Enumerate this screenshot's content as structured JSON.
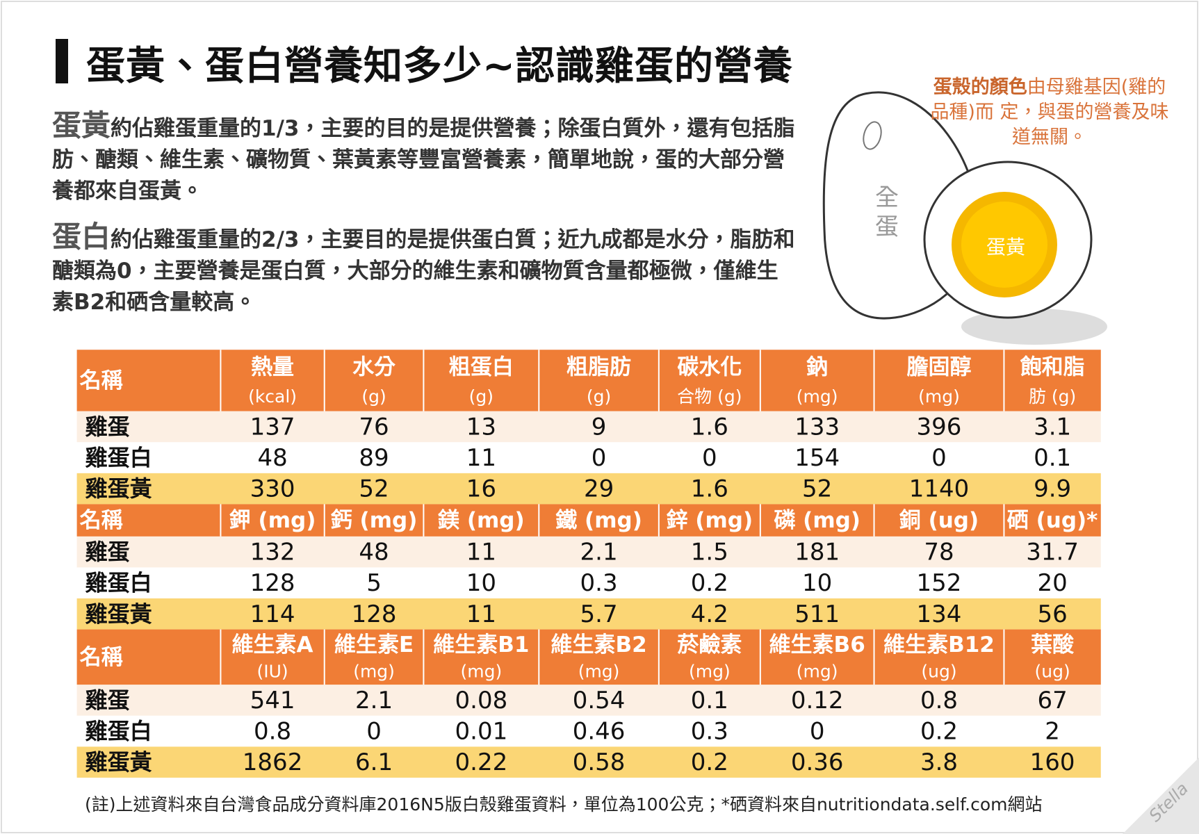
{
  "title": "蛋黃、蛋白營養知多少~認識雞蛋的營養",
  "paragraphs": [
    {
      "lead": "蛋黃",
      "text": "約佔雞蛋重量的1/3，主要的目的是提供營養；除蛋白質外，還有包括脂肪、醣類、維生素、礦物質、葉黃素等豐富營養素，簡單地說，蛋的大部分營養都來自蛋黃。"
    },
    {
      "lead": "蛋白",
      "text": "約佔雞蛋重量的2/3，主要目的是提供蛋白質；近九成都是水分，脂肪和醣類為0，主要營養是蛋白質，大部分的維生素和礦物質含量都極微，僅維生素B2和硒含量較高。"
    }
  ],
  "shell_note": {
    "emphasis": "蛋殼的顏色",
    "text": "由母雞基因(雞的品種)而 定，與蛋的營養及味道無關。"
  },
  "egg_labels": {
    "whole": [
      "全",
      "蛋"
    ],
    "yolk": "蛋黃"
  },
  "table": {
    "sections": [
      {
        "header": [
          [
            "名稱"
          ],
          [
            "熱量",
            "(kcal)"
          ],
          [
            "水分",
            "(g)"
          ],
          [
            "粗蛋白",
            "(g)"
          ],
          [
            "粗脂肪",
            "(g)"
          ],
          [
            "碳水化",
            "合物 (g)"
          ],
          [
            "鈉",
            "(mg)"
          ],
          [
            "膽固醇",
            "(mg)"
          ],
          [
            "飽和脂",
            "肪 (g)"
          ]
        ],
        "rows": [
          {
            "name": "雞蛋",
            "values": [
              137,
              76,
              13,
              9,
              1.6,
              133,
              396,
              3.1
            ]
          },
          {
            "name": "雞蛋白",
            "values": [
              48,
              89,
              11,
              0,
              0,
              154,
              0,
              0.1
            ]
          },
          {
            "name": "雞蛋黃",
            "values": [
              330,
              52,
              16,
              29,
              1.6,
              52,
              1140,
              9.9
            ]
          }
        ]
      },
      {
        "header": [
          [
            "名稱"
          ],
          [
            "鉀 (mg)"
          ],
          [
            "鈣 (mg)"
          ],
          [
            "鎂 (mg)"
          ],
          [
            "鐵 (mg)"
          ],
          [
            "鋅 (mg)"
          ],
          [
            "磷 (mg)"
          ],
          [
            "銅 (ug)"
          ],
          [
            "硒 (ug)*"
          ]
        ],
        "rows": [
          {
            "name": "雞蛋",
            "values": [
              132,
              48,
              11,
              2.1,
              1.5,
              181,
              78,
              31.7
            ]
          },
          {
            "name": "雞蛋白",
            "values": [
              128,
              5,
              10,
              0.3,
              0.2,
              10,
              152,
              20
            ]
          },
          {
            "name": "雞蛋黃",
            "values": [
              114,
              128,
              11,
              5.7,
              4.2,
              511,
              134,
              56
            ]
          }
        ]
      },
      {
        "header": [
          [
            "名稱"
          ],
          [
            "維生素A",
            "(IU)"
          ],
          [
            "維生素E",
            "(mg)"
          ],
          [
            "維生素B1",
            "(mg)"
          ],
          [
            "維生素B2",
            "(mg)"
          ],
          [
            "菸鹼素",
            "(mg)"
          ],
          [
            "維生素B6",
            "(mg)"
          ],
          [
            "維生素B12",
            "(ug)"
          ],
          [
            "葉酸",
            "(ug)"
          ]
        ],
        "rows": [
          {
            "name": "雞蛋",
            "values": [
              541,
              2.1,
              0.08,
              0.54,
              0.1,
              0.12,
              0.8,
              67
            ]
          },
          {
            "name": "雞蛋白",
            "values": [
              0.8,
              0,
              0.01,
              0.46,
              0.3,
              0,
              0.2,
              2
            ]
          },
          {
            "name": "雞蛋黃",
            "values": [
              1862,
              6.1,
              0.22,
              0.58,
              0.2,
              0.36,
              3.8,
              160
            ]
          }
        ]
      }
    ]
  },
  "footnote": "(註)上述資料來自台灣食品成分資料庫2016N5版白殼雞蛋資料，單位為100公克；*硒資料來自nutritiondata.self.com網站",
  "signature": "Stella"
}
